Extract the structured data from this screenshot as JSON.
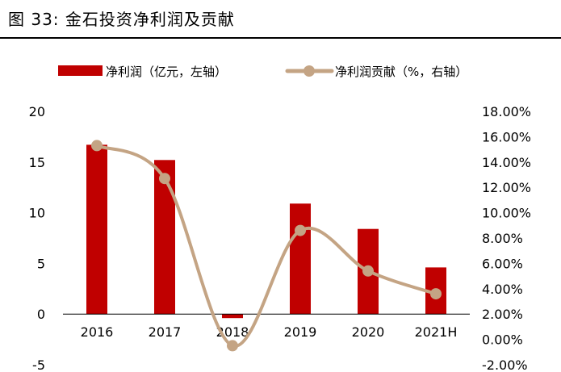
{
  "figure": {
    "label": "图 33:",
    "title": "金石投资净利润及贡献"
  },
  "chart_data": {
    "type": "bar+line",
    "categories": [
      "2016",
      "2017",
      "2018",
      "2019",
      "2020",
      "2021H"
    ],
    "series": [
      {
        "name": "净利润（亿元，左轴）",
        "type": "bar",
        "axis": "left",
        "values": [
          16.7,
          15.2,
          -0.4,
          10.9,
          8.4,
          4.6
        ]
      },
      {
        "name": "净利润贡献（%，右轴）",
        "type": "line",
        "axis": "right",
        "values": [
          15.3,
          12.7,
          -0.5,
          8.6,
          5.4,
          3.6
        ]
      }
    ],
    "left_axis": {
      "ylim": [
        -5,
        20
      ],
      "ticks": [
        "-5",
        "0",
        "5",
        "10",
        "15",
        "20"
      ]
    },
    "right_axis": {
      "ylim": [
        -2,
        18
      ],
      "ticks": [
        "-2.00%",
        "0.00%",
        "2.00%",
        "4.00%",
        "6.00%",
        "8.00%",
        "10.00%",
        "12.00%",
        "14.00%",
        "16.00%",
        "18.00%"
      ]
    },
    "colors": {
      "bar": "#C00000",
      "line": "#C4A484"
    },
    "legend_position": "top",
    "grid": false
  }
}
